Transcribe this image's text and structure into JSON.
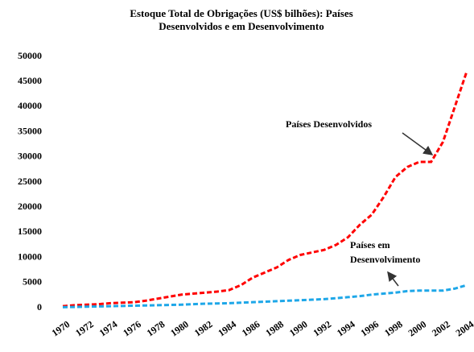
{
  "chart_data": {
    "type": "line",
    "title": [
      "Estoque Total de Obrigações (US$ bilhões): Países",
      "Desenvolvidos e em Desenvolvimento"
    ],
    "x": [
      1970,
      1971,
      1972,
      1973,
      1974,
      1975,
      1976,
      1977,
      1978,
      1979,
      1980,
      1981,
      1982,
      1983,
      1984,
      1985,
      1986,
      1987,
      1988,
      1989,
      1990,
      1991,
      1992,
      1993,
      1994,
      1995,
      1996,
      1997,
      1998,
      1999,
      2000,
      2001,
      2002,
      2003,
      2004
    ],
    "series": [
      {
        "color": "#ff0000",
        "values": [
          300,
          500,
          600,
          700,
          900,
          1000,
          1100,
          1400,
          1800,
          2200,
          2600,
          2800,
          3000,
          3200,
          3500,
          4500,
          6000,
          7000,
          8000,
          9500,
          10500,
          11000,
          11500,
          12500,
          14000,
          16500,
          18500,
          22000,
          26000,
          28000,
          29000,
          29000,
          33000,
          40000,
          47000
        ]
      },
      {
        "color": "#1ea7e8",
        "values": [
          100,
          150,
          200,
          250,
          300,
          350,
          400,
          450,
          500,
          550,
          600,
          700,
          800,
          850,
          900,
          1000,
          1100,
          1200,
          1300,
          1400,
          1500,
          1600,
          1700,
          1900,
          2100,
          2300,
          2600,
          2800,
          3000,
          3300,
          3400,
          3400,
          3400,
          3800,
          4500
        ]
      }
    ],
    "annotations": [
      {
        "lines": [
          "Países Desenvolvidos"
        ]
      },
      {
        "lines": [
          "Países em",
          "Desenvolvimento"
        ]
      }
    ],
    "xlim": [
      1970,
      2004
    ],
    "xticks": [
      1970,
      1972,
      1974,
      1976,
      1978,
      1980,
      1982,
      1984,
      1986,
      1988,
      1990,
      1992,
      1994,
      1996,
      1998,
      2000,
      2002,
      2004
    ],
    "ylim": [
      0,
      50000
    ],
    "yticks": [
      0,
      5000,
      10000,
      15000,
      20000,
      25000,
      30000,
      35000,
      40000,
      45000,
      50000
    ],
    "grid": false
  }
}
